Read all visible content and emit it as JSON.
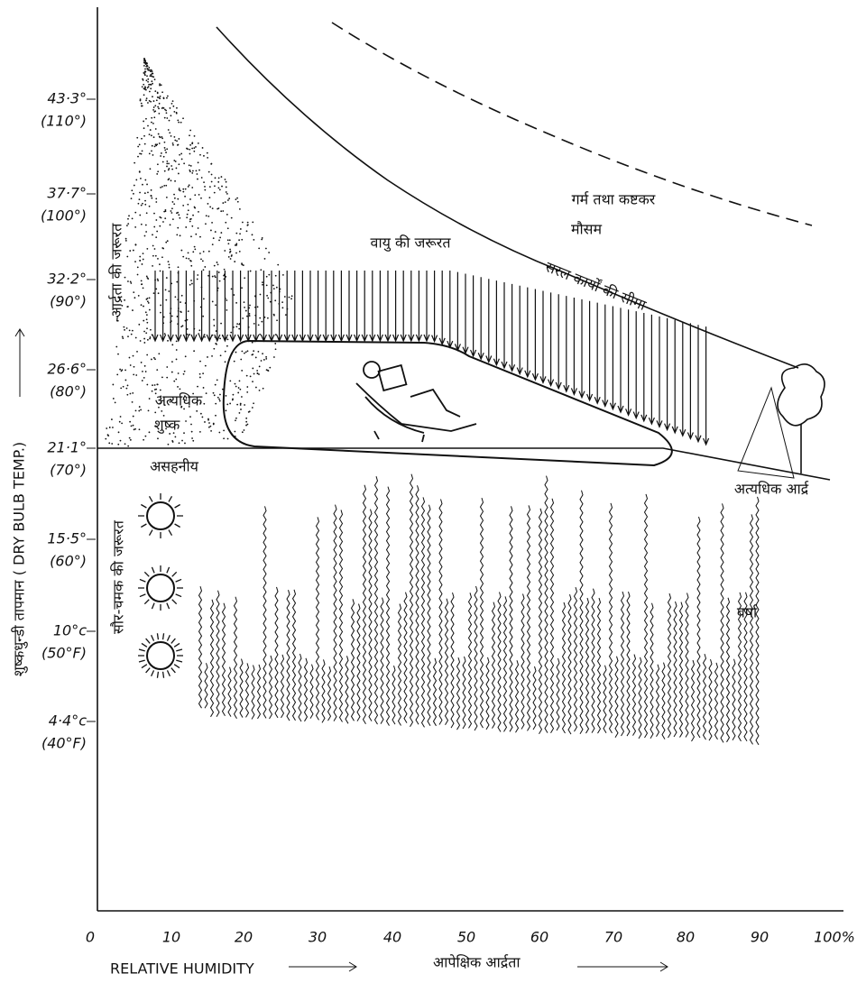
{
  "x_axis": {
    "label": "RELATIVE HUMIDITY",
    "label_hindi": "आपेक्षिक आर्द्रता",
    "ticks": [
      "0",
      "10",
      "20",
      "30",
      "40",
      "50",
      "60",
      "70",
      "80",
      "90",
      "100%"
    ]
  },
  "y_axis": {
    "label": "शुष्कधुन्डी तापमान ( DRY BULB TEMP.)",
    "ticks": [
      {
        "celsius": "43·3°",
        "fahrenheit": "(110°)"
      },
      {
        "celsius": "37·7°",
        "fahrenheit": "(100°)"
      },
      {
        "celsius": "32·2°",
        "fahrenheit": "(90°)"
      },
      {
        "celsius": "26·6°",
        "fahrenheit": "(80°)"
      },
      {
        "celsius": "21·1°",
        "fahrenheit": "(70°)"
      },
      {
        "celsius": "15·5°",
        "fahrenheit": "(60°)"
      },
      {
        "celsius": "10°c",
        "fahrenheit": "(50°F)"
      },
      {
        "celsius": "4·4°c",
        "fahrenheit": "(40°F)"
      }
    ]
  },
  "annotations": [
    "गर्म तथा कष्टकर",
    "मौसम",
    "वायु की जरूरत",
    "सरल कार्यों की सीमा",
    "आर्द्रता की जरूरत",
    "अत्यधिक",
    "शुष्क",
    "असहनीय",
    "सौर-चमक की जरूरत",
    "अत्यधिक आर्द्र",
    "वर्षा"
  ]
}
